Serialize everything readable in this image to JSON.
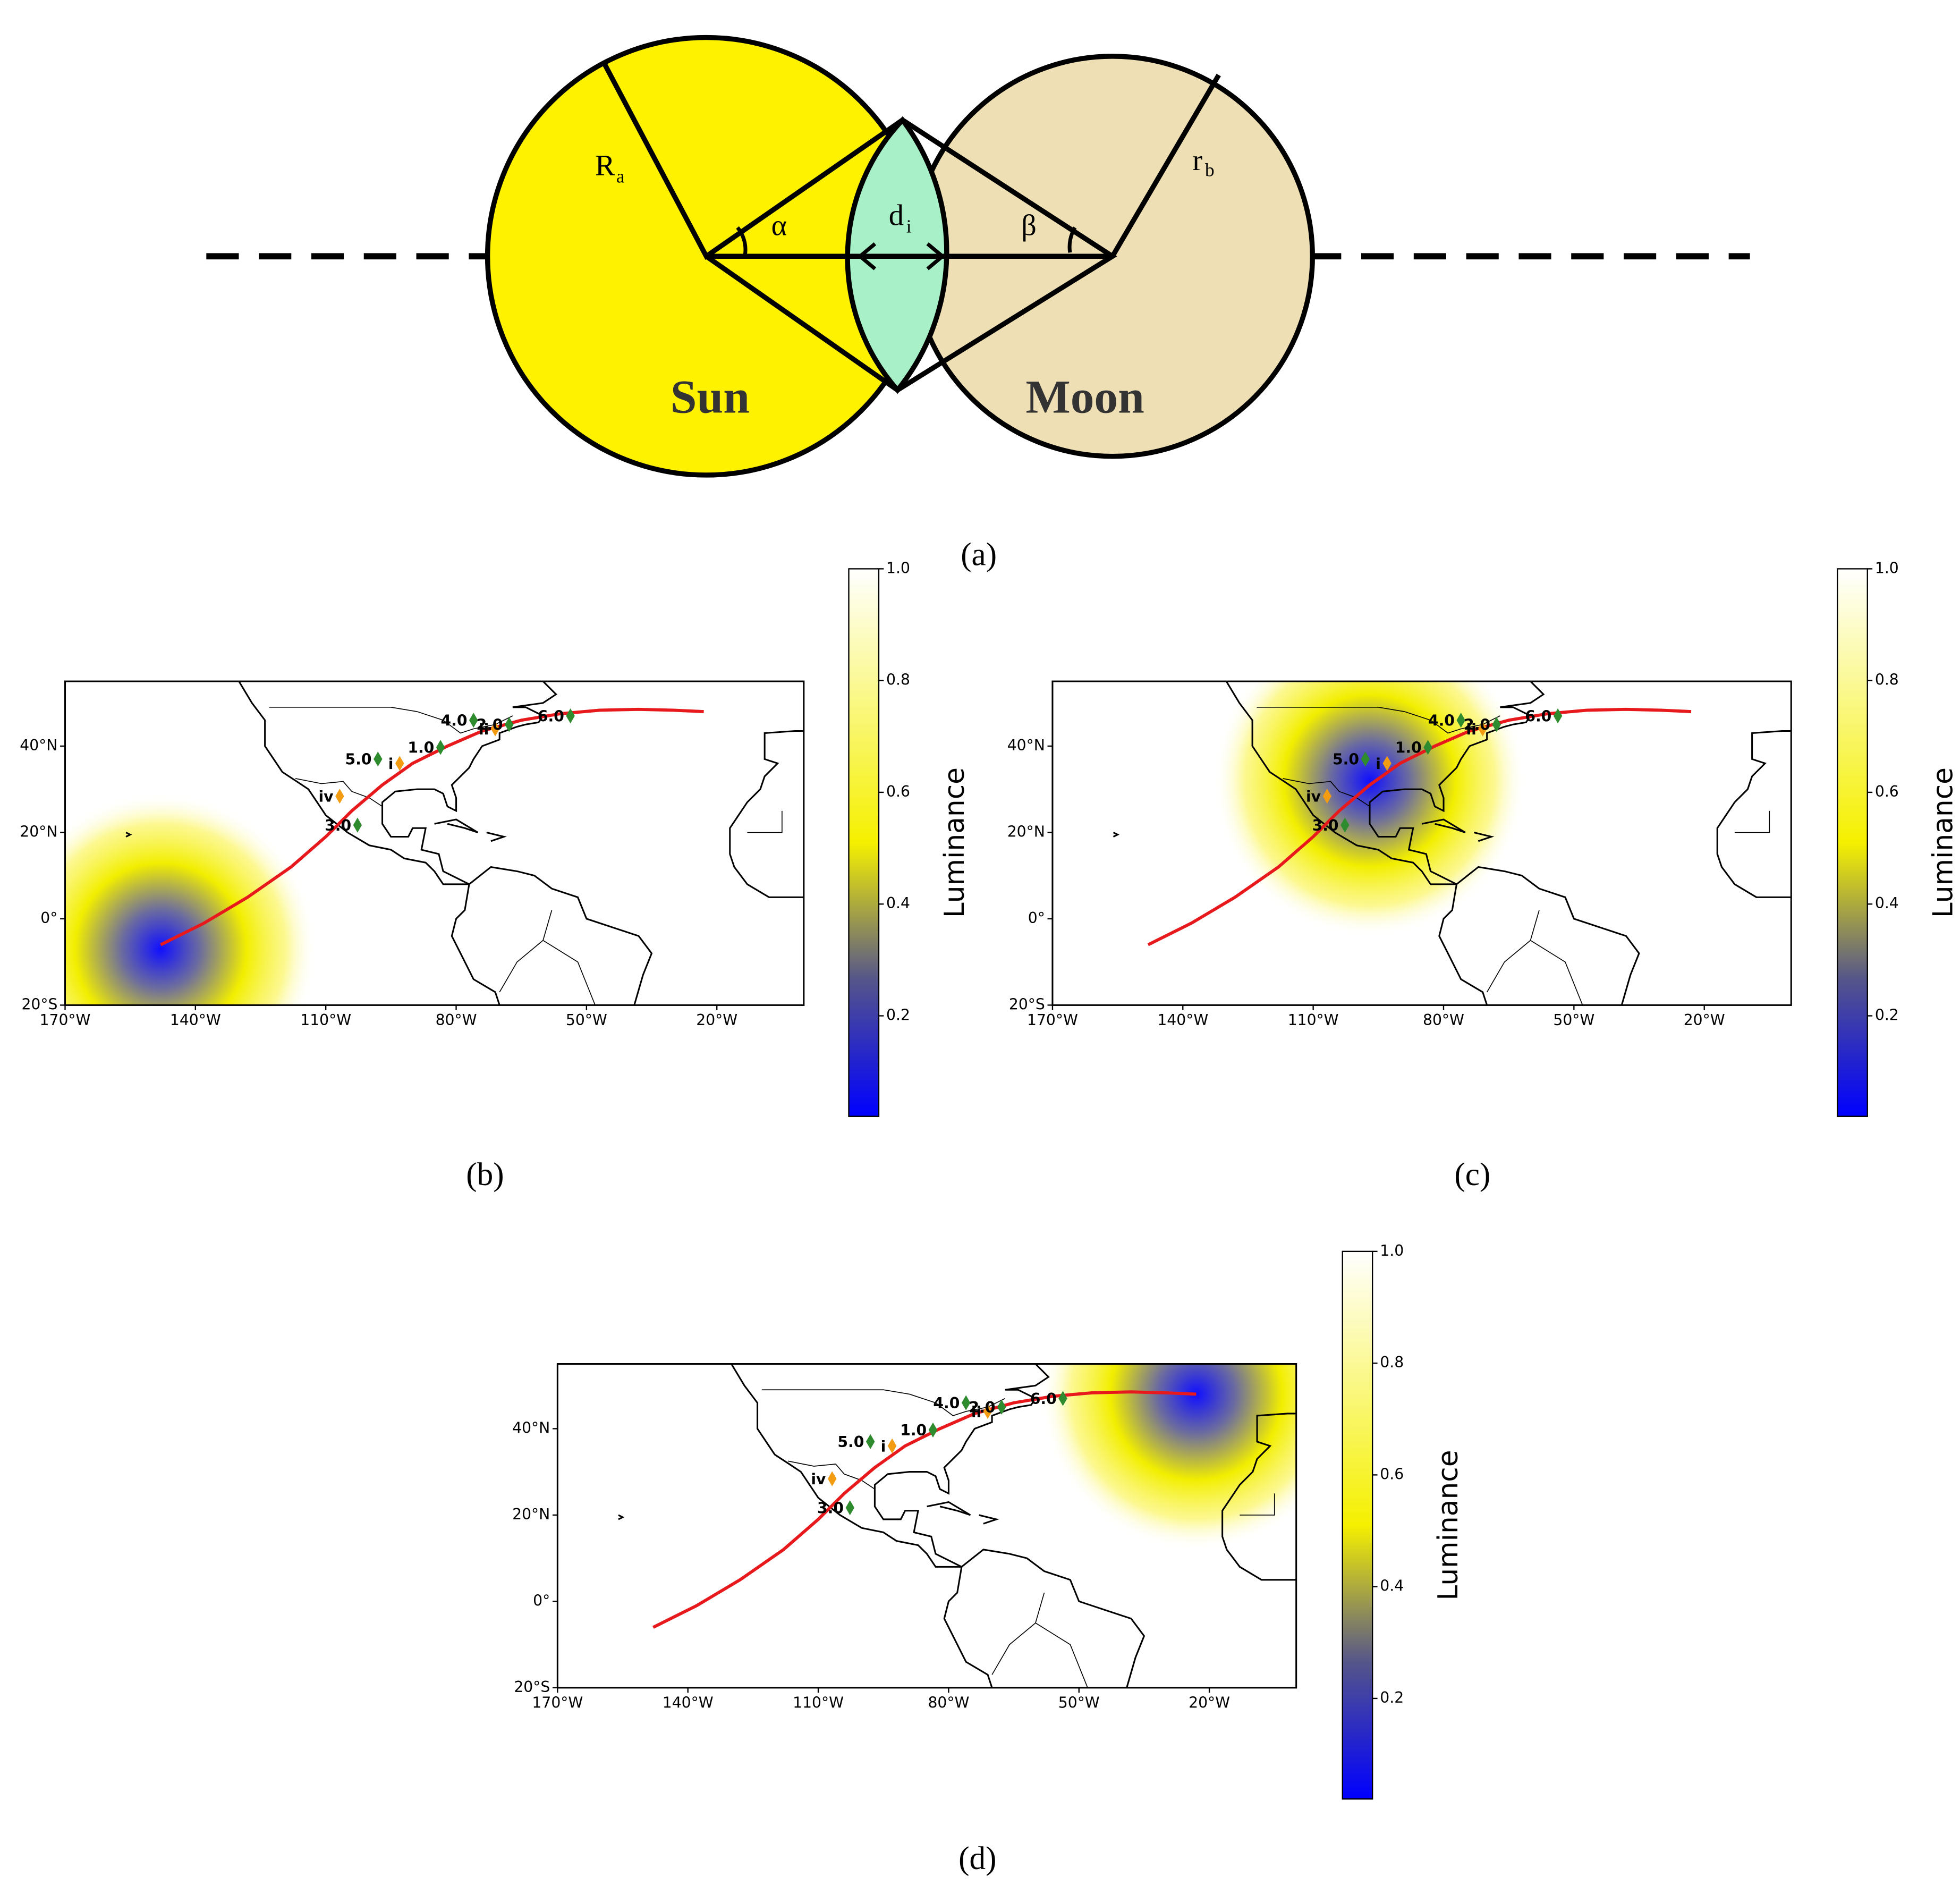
{
  "diagram": {
    "R": "R",
    "R_sub": "a",
    "r": "r",
    "r_sub": "b",
    "alpha": "α",
    "beta": "β",
    "d": "d",
    "d_sub": "i",
    "sun": "Sun",
    "moon": "Moon",
    "caption": "(a)"
  },
  "map_axes": {
    "xlim": [
      -170,
      0
    ],
    "ylim": [
      -20,
      55
    ],
    "xticks": [
      {
        "value": -170,
        "label": "170°W"
      },
      {
        "value": -140,
        "label": "140°W"
      },
      {
        "value": -110,
        "label": "110°W"
      },
      {
        "value": -80,
        "label": "80°W"
      },
      {
        "value": -50,
        "label": "50°W"
      },
      {
        "value": -20,
        "label": "20°W"
      }
    ],
    "yticks": [
      {
        "value": -20,
        "label": "20°S"
      },
      {
        "value": 0,
        "label": "0°"
      },
      {
        "value": 20,
        "label": "20°N"
      },
      {
        "value": 40,
        "label": "40°N"
      }
    ],
    "path": {
      "color": "#e8191c",
      "lon": [
        -148,
        -138,
        -128,
        -118,
        -110,
        -104,
        -97,
        -90,
        -82,
        -74,
        -65,
        -56,
        -47,
        -38,
        -30,
        -23
      ],
      "lat": [
        -6,
        -1,
        5,
        12,
        19,
        25,
        31,
        36,
        40,
        43.5,
        46,
        47.5,
        48.3,
        48.5,
        48.3,
        48
      ]
    },
    "stations": [
      {
        "label": "4.0",
        "lon": -76,
        "lat": 46,
        "color": "#2e8b2e"
      },
      {
        "label": "1.0",
        "lon": -83.6,
        "lat": 39.7,
        "color": "#2e8b2e"
      },
      {
        "label": "5.0",
        "lon": -98,
        "lat": 37,
        "color": "#2e8b2e"
      },
      {
        "label": "i",
        "lon": -93,
        "lat": 36,
        "color": "#f39c12"
      },
      {
        "label": "iv",
        "lon": -106.8,
        "lat": 28.4,
        "color": "#f39c12"
      },
      {
        "label": "3.0",
        "lon": -102.7,
        "lat": 21.7,
        "color": "#2e8b2e"
      },
      {
        "label": "ii",
        "lon": -71,
        "lat": 44,
        "color": "#f39c12"
      },
      {
        "label": "2.0",
        "lon": -67.8,
        "lat": 45,
        "color": "#2e8b2e"
      },
      {
        "label": "6.0",
        "lon": -53.7,
        "lat": 47,
        "color": "#2e8b2e"
      }
    ]
  },
  "colorbar": {
    "label": "Luminance",
    "lim": [
      0.02,
      1
    ],
    "ticks": [
      0.2,
      0.4,
      0.6,
      0.8,
      {
        "value": 1,
        "label": "1.0"
      }
    ]
  },
  "maps": [
    {
      "caption": "(b)",
      "umbra": {
        "lon": -148,
        "lat": -7
      }
    },
    {
      "caption": "(c)",
      "umbra": {
        "lon": -97,
        "lat": 32
      }
    },
    {
      "caption": "(d)",
      "umbra": {
        "lon": -23,
        "lat": 48
      }
    }
  ]
}
